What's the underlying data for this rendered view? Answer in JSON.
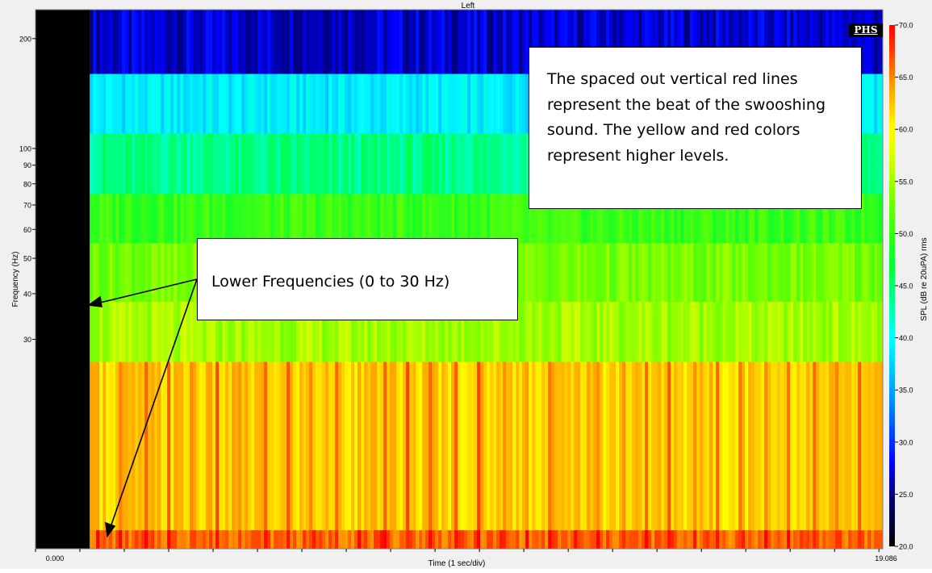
{
  "chart_data": {
    "type": "heatmap",
    "title": "Left",
    "xlabel": "Time (1 sec/div)",
    "ylabel": "Frequency (Hz)",
    "colorbar_label": "SPL (dB re 20uPA) rms",
    "x_range": [
      0.0,
      19.086
    ],
    "x_tick_labels": [
      "0.000",
      "19.086"
    ],
    "y_scale": "log",
    "y_tick_labels": [
      "200",
      "100",
      "90",
      "80",
      "70",
      "60",
      "50",
      "40",
      "30"
    ],
    "y_tick_values": [
      200,
      100,
      90,
      80,
      70,
      60,
      50,
      40,
      30
    ],
    "colorbar_range": [
      20.0,
      70.0
    ],
    "colorbar_tick_labels": [
      "70.0",
      "65.0",
      "60.0",
      "55.0",
      "50.0",
      "45.0",
      "40.0",
      "35.0",
      "30.0",
      "25.0",
      "20.0"
    ],
    "colorbar_ticks": [
      70,
      65,
      60,
      55,
      50,
      45,
      40,
      35,
      30,
      25,
      20
    ],
    "no_data_until_s": 1.22,
    "bands": [
      {
        "freq_low_hz": 160,
        "freq_high_hz": 240,
        "mean_spl": 27
      },
      {
        "freq_low_hz": 110,
        "freq_high_hz": 160,
        "mean_spl": 39
      },
      {
        "freq_low_hz": 75,
        "freq_high_hz": 110,
        "mean_spl": 44
      },
      {
        "freq_low_hz": 55,
        "freq_high_hz": 75,
        "mean_spl": 50
      },
      {
        "freq_low_hz": 38,
        "freq_high_hz": 55,
        "mean_spl": 53
      },
      {
        "freq_low_hz": 26,
        "freq_high_hz": 38,
        "mean_spl": 55
      },
      {
        "freq_low_hz": 9,
        "freq_high_hz": 26,
        "mean_spl": 62
      },
      {
        "freq_low_hz": 8,
        "freq_high_hz": 9,
        "mean_spl": 66
      }
    ]
  },
  "annotations": {
    "beat_text": "The spaced out vertical red lines represent the beat of the swooshing sound. The yellow and red colors represent higher levels.",
    "low_freq_text": "Lower Frequencies (0 to 30 Hz)"
  },
  "logo_text": "PHS",
  "colors": {
    "no_data": "#000000",
    "frame_background": "#f0f0f0"
  }
}
